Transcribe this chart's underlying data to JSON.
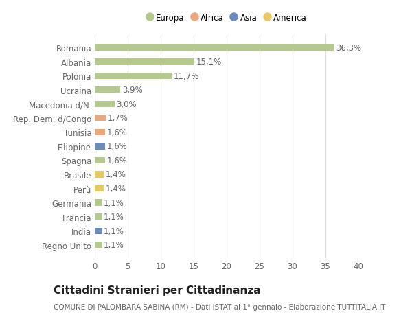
{
  "categories": [
    "Regno Unito",
    "India",
    "Francia",
    "Germania",
    "Perù",
    "Brasile",
    "Spagna",
    "Filippine",
    "Tunisia",
    "Rep. Dem. d/Congo",
    "Macedonia d/N.",
    "Ucraina",
    "Polonia",
    "Albania",
    "Romania"
  ],
  "values": [
    1.1,
    1.1,
    1.1,
    1.1,
    1.4,
    1.4,
    1.6,
    1.6,
    1.6,
    1.7,
    3.0,
    3.9,
    11.7,
    15.1,
    36.3
  ],
  "labels": [
    "1,1%",
    "1,1%",
    "1,1%",
    "1,1%",
    "1,4%",
    "1,4%",
    "1,6%",
    "1,6%",
    "1,6%",
    "1,7%",
    "3,0%",
    "3,9%",
    "11,7%",
    "15,1%",
    "36,3%"
  ],
  "colors": [
    "#b5c98e",
    "#6b8cba",
    "#b5c98e",
    "#b5c98e",
    "#e8c96a",
    "#e8c96a",
    "#b5c98e",
    "#6b8cba",
    "#e8a87c",
    "#e8a87c",
    "#b5c98e",
    "#b5c98e",
    "#b5c98e",
    "#b5c98e",
    "#b5c98e"
  ],
  "legend_labels": [
    "Europa",
    "Africa",
    "Asia",
    "America"
  ],
  "legend_colors": [
    "#b5c98e",
    "#e8a87c",
    "#6b8cba",
    "#e8c96a"
  ],
  "title": "Cittadini Stranieri per Cittadinanza",
  "subtitle": "COMUNE DI PALOMBARA SABINA (RM) - Dati ISTAT al 1° gennaio - Elaborazione TUTTITALIA.IT",
  "xlim": [
    0,
    40
  ],
  "xticks": [
    0,
    5,
    10,
    15,
    20,
    25,
    30,
    35,
    40
  ],
  "bg_color": "#ffffff",
  "grid_color": "#dddddd",
  "bar_height": 0.45,
  "label_fontsize": 8.5,
  "tick_fontsize": 8.5,
  "title_fontsize": 11,
  "subtitle_fontsize": 7.5
}
